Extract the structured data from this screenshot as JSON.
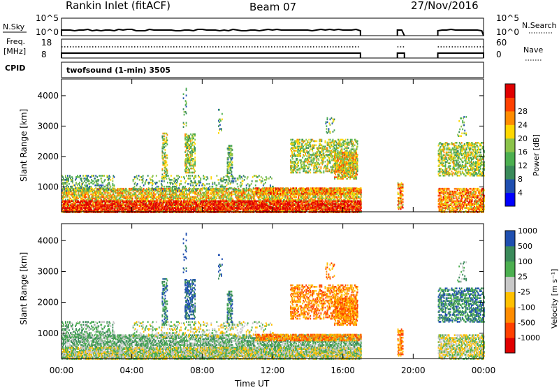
{
  "header": {
    "title": "Rankin Inlet (fitACF)",
    "beam": "Beam 07",
    "date": "27/Nov/2016"
  },
  "panels": {
    "nsky": {
      "label": "N.Sky",
      "ticks": [
        "10^5",
        "10^0"
      ],
      "right_label": "N.Search",
      "right_ticks": [
        "10^5",
        "10^0"
      ]
    },
    "freq": {
      "label_line1": "Freq.",
      "label_line2": "[MHz]",
      "ticks": [
        "18",
        "8"
      ],
      "right_label": "Nave",
      "right_ticks": [
        "60",
        "0"
      ]
    },
    "cpid": {
      "label": "CPID",
      "value": "twofsound (1-min) 3505"
    }
  },
  "colors": {
    "power": [
      "#0000ff",
      "#1f4fb0",
      "#3a8a5a",
      "#4caf50",
      "#8bc34a",
      "#ffd700",
      "#ff8c00",
      "#ff4000",
      "#e00000"
    ],
    "velocity": [
      "#e00000",
      "#ff4000",
      "#ff8c00",
      "#ffc000",
      "#c8c8c8",
      "#4caf50",
      "#3a8a5a",
      "#1f4fb0"
    ]
  },
  "chart_data": [
    {
      "type": "heatmap",
      "name": "power",
      "ylabel": "Slant Range [km]",
      "xlabel": "",
      "yticks": [
        1000,
        2000,
        3000,
        4000
      ],
      "ylim": [
        180,
        4550
      ],
      "xlim": [
        0,
        24
      ],
      "colorbar": {
        "label": "Power [dB]",
        "ticks": [
          "4",
          "8",
          "12",
          "16",
          "20",
          "24",
          "28"
        ],
        "range": [
          0,
          30
        ]
      }
    },
    {
      "type": "heatmap",
      "name": "velocity",
      "ylabel": "Slant Range [km]",
      "xlabel": "Time UT",
      "yticks": [
        1000,
        2000,
        3000,
        4000
      ],
      "ylim": [
        180,
        4550
      ],
      "xlim": [
        0,
        24
      ],
      "xticks": [
        "00:00",
        "04:00",
        "08:00",
        "12:00",
        "16:00",
        "20:00",
        "00:00"
      ],
      "colorbar": {
        "label": "Velocity [m s⁻¹]",
        "ticks": [
          "-1000",
          "-500",
          "-100",
          "-25",
          "25",
          "100",
          "500",
          "1000"
        ],
        "range": [
          -1000,
          1000
        ]
      }
    }
  ]
}
